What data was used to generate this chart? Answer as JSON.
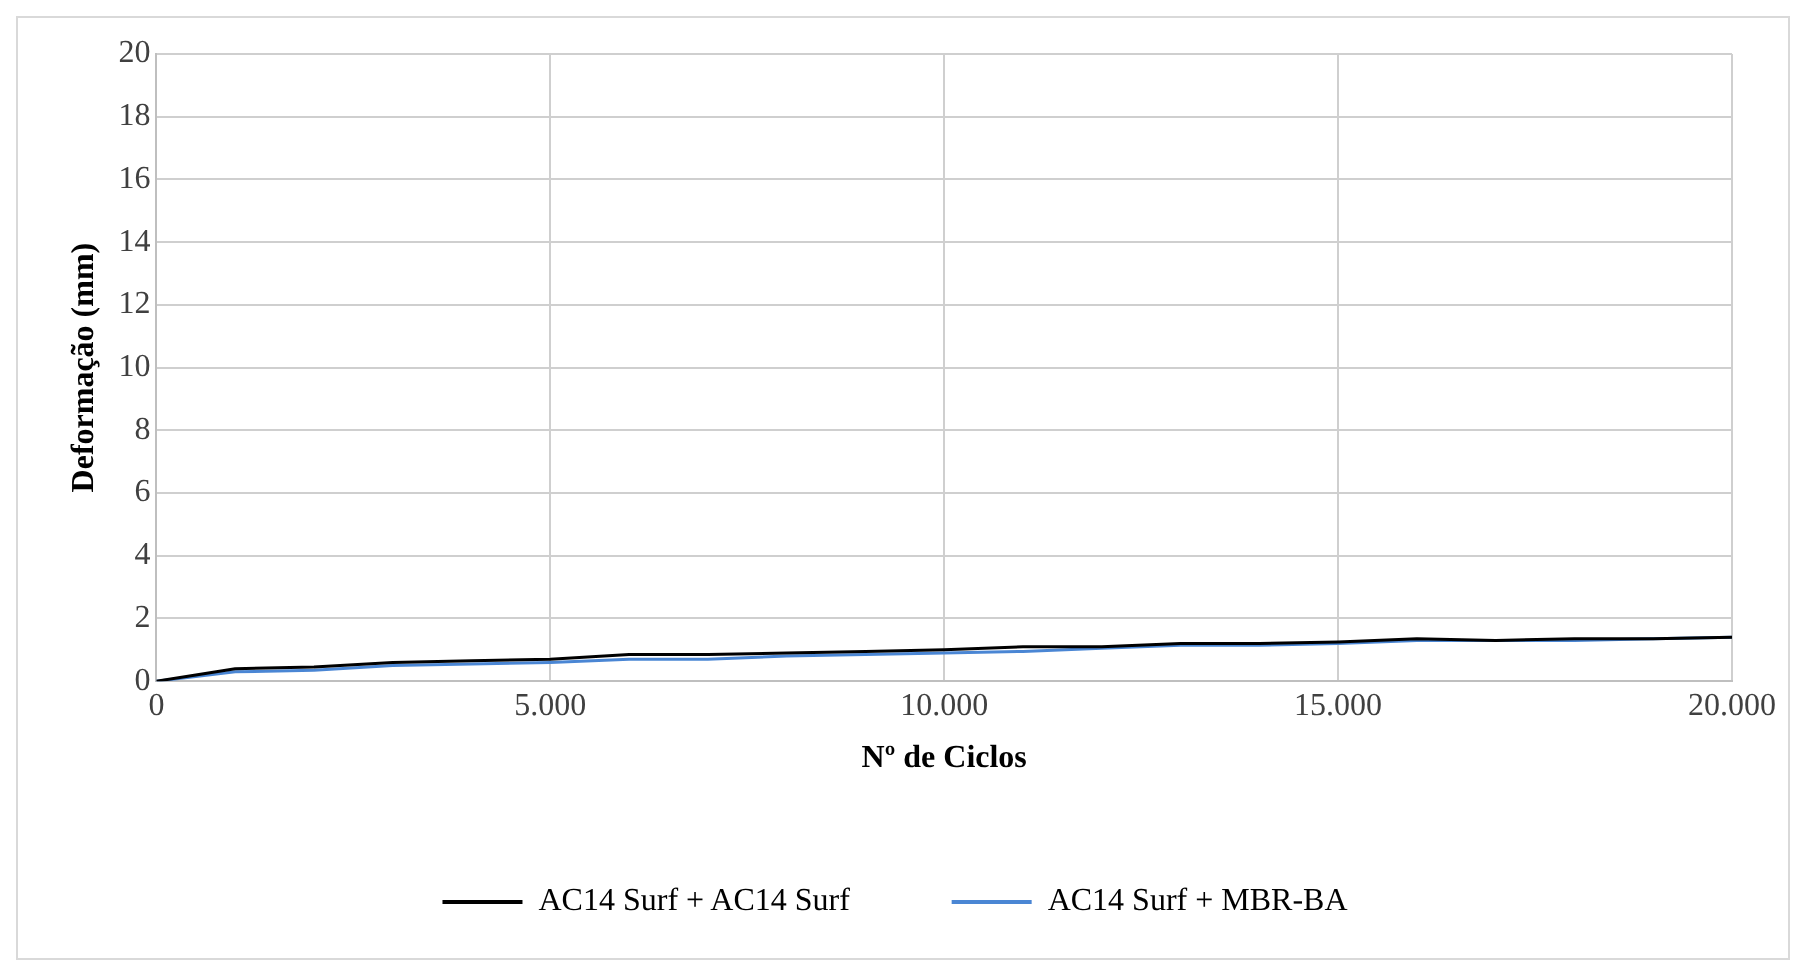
{
  "chart_data": {
    "type": "line",
    "xlabel": "Nº de Ciclos",
    "ylabel": "Deformação (mm)",
    "x": [
      0,
      500,
      1000,
      2000,
      3000,
      4000,
      5000,
      6000,
      7000,
      8000,
      9000,
      10000,
      11000,
      12000,
      13000,
      14000,
      15000,
      16000,
      17000,
      18000,
      19000,
      20000
    ],
    "series": [
      {
        "name": "AC14 Surf + AC14 Surf",
        "color": "#000000",
        "values": [
          0,
          0.2,
          0.4,
          0.45,
          0.6,
          0.65,
          0.7,
          0.85,
          0.85,
          0.9,
          0.95,
          1.0,
          1.1,
          1.1,
          1.2,
          1.2,
          1.25,
          1.35,
          1.3,
          1.35,
          1.35,
          1.4
        ]
      },
      {
        "name": "AC14 Surf + MBR-BA",
        "color": "#4a86d4",
        "values": [
          0,
          0.15,
          0.3,
          0.35,
          0.5,
          0.55,
          0.6,
          0.7,
          0.7,
          0.8,
          0.85,
          0.9,
          0.95,
          1.05,
          1.15,
          1.15,
          1.2,
          1.3,
          1.3,
          1.3,
          1.35,
          1.4
        ]
      }
    ],
    "xlim": [
      0,
      20000
    ],
    "xticks": [
      0,
      {
        "value": 5000,
        "label": "5.000"
      },
      {
        "value": 10000,
        "label": "10.000"
      },
      {
        "value": 15000,
        "label": "15.000"
      },
      {
        "value": 20000,
        "label": "20.000"
      }
    ],
    "ylim": [
      0,
      20
    ],
    "yticks": [
      0,
      2,
      4,
      6,
      8,
      10,
      12,
      14,
      16,
      18,
      20
    ],
    "grid": true,
    "legend": "bottom",
    "marker": "none",
    "line_style": "solid"
  }
}
